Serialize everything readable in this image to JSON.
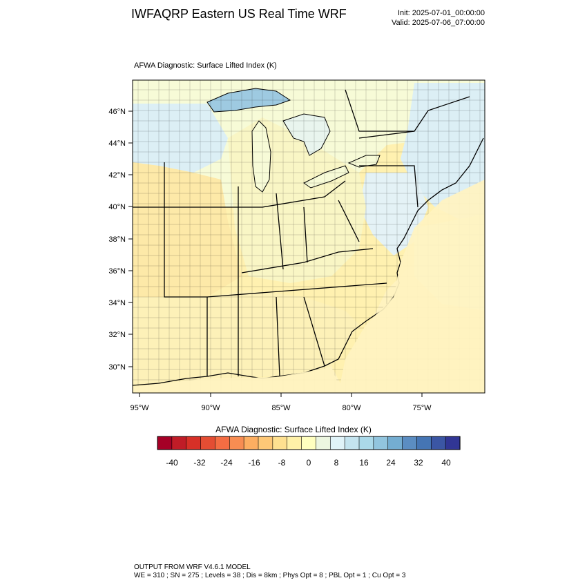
{
  "header": {
    "title": "IWFAQRP Eastern US Real Time WRF",
    "init": "Init: 2025-07-01_00:00:00",
    "valid": "Valid: 2025-07-06_07:00:00"
  },
  "map": {
    "subtitle": "AFWA Diagnostic: Surface Lifted Index   (K)",
    "lat_labels": [
      "46°N",
      "44°N",
      "42°N",
      "40°N",
      "38°N",
      "36°N",
      "34°N",
      "32°N",
      "30°N"
    ],
    "lon_labels": [
      "95°W",
      "90°W",
      "85°W",
      "80°W",
      "75°W"
    ],
    "background_colors": {
      "lake": "#9ecae1",
      "cool": "#dceff5",
      "neutral": "#f7fbd7",
      "warm": "#fde9a8",
      "ocean": "#fff1b0"
    }
  },
  "colorbar": {
    "title": "AFWA Diagnostic: Surface Lifted Index  (K)",
    "colors": [
      "#a50026",
      "#c01c27",
      "#d73027",
      "#e44d33",
      "#f46d43",
      "#f88d52",
      "#fdae61",
      "#fec877",
      "#fee090",
      "#fff1a8",
      "#ffffbf",
      "#ecf6e0",
      "#e0f3f8",
      "#c4e4ef",
      "#abd9e9",
      "#92c5de",
      "#74add1",
      "#5b8dc2",
      "#4575b4",
      "#3b56a4",
      "#313695"
    ],
    "labels": [
      "-40",
      "-32",
      "-24",
      "-16",
      "-8",
      "0",
      "8",
      "16",
      "24",
      "32",
      "40"
    ]
  },
  "footer": {
    "line1": "OUTPUT FROM WRF V4.6.1 MODEL",
    "line2": "WE = 310 ; SN = 275 ; Levels = 38 ; Dis = 8km ; Phys Opt = 8 ; PBL Opt = 1 ; Cu Opt = 3"
  }
}
